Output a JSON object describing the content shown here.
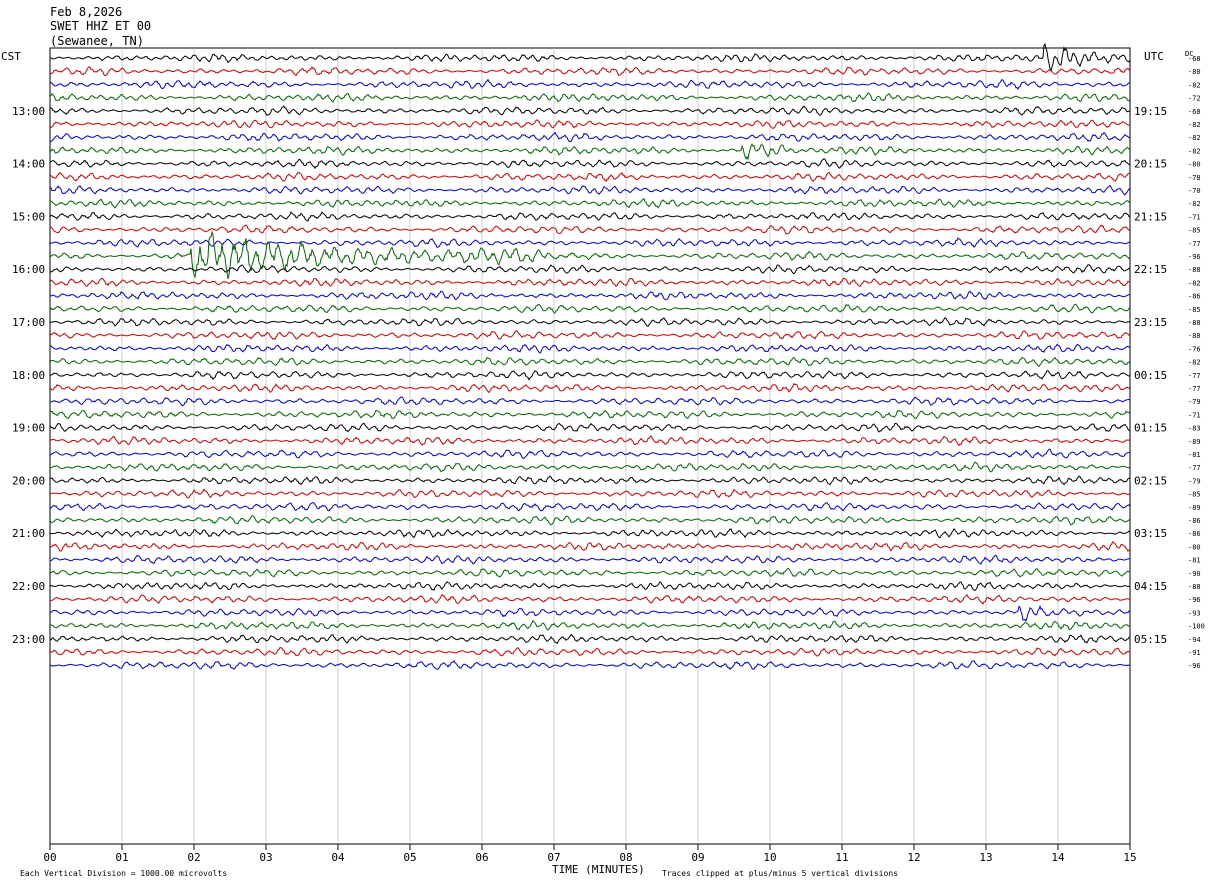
{
  "header": {
    "date": "Feb 8,2026",
    "station": "SWET HHZ ET 00",
    "location": "(Sewanee, TN)"
  },
  "axes": {
    "left_label": "CST",
    "right_label": "UTC",
    "dc_label": "DC",
    "x_label": "TIME (MINUTES)"
  },
  "footer": {
    "scale_note": "Each Vertical Division = 1000.00 microvolts",
    "clip_note": "Traces clipped at plus/minus 5 vertical divisions"
  },
  "colors": {
    "trace_cycle": [
      "#000000",
      "#cc0000",
      "#0000cc",
      "#006600"
    ],
    "grid": "#b0b0b0"
  },
  "chart_data": {
    "type": "line",
    "title": "",
    "xlabel": "TIME (MINUTES)",
    "xlim": [
      0,
      15
    ],
    "x_ticks": [
      "00",
      "01",
      "02",
      "03",
      "04",
      "05",
      "06",
      "07",
      "08",
      "09",
      "10",
      "11",
      "12",
      "13",
      "14",
      "15"
    ],
    "cst_labels": [
      "13:00",
      "14:00",
      "15:00",
      "16:00",
      "17:00",
      "18:00",
      "19:00",
      "20:00",
      "21:00",
      "22:00",
      "23:00"
    ],
    "utc_labels": [
      "19:15",
      "20:15",
      "21:15",
      "22:15",
      "23:15",
      "00:15",
      "01:15",
      "02:15",
      "03:15",
      "04:15",
      "05:15"
    ],
    "dc_offsets": [
      -68,
      -80,
      -82,
      -72,
      -68,
      -82,
      -82,
      -82,
      -80,
      -78,
      -70,
      -82,
      -71,
      -85,
      -77,
      -96,
      -88,
      -82,
      -86,
      -85,
      -88,
      -88,
      -76,
      -82,
      -77,
      -77,
      -79,
      -71,
      -83,
      -89,
      -81,
      -77,
      -79,
      -85,
      -89,
      -86,
      -86,
      -80,
      -81,
      -90,
      -88,
      -96,
      -93,
      -100,
      -94,
      -91,
      -96
    ],
    "traces_per_hour": 4,
    "trace_count": 47,
    "events": [
      {
        "trace": 15,
        "start_min": 1.95,
        "peak_amplitude": "clipped",
        "duration_min": 5.0
      },
      {
        "trace": 0,
        "start_min": 13.8,
        "peak_amplitude": "high",
        "duration_min": 1.2
      },
      {
        "trace": 42,
        "start_min": 13.45,
        "peak_amplitude": "moderate",
        "duration_min": 0.3
      },
      {
        "trace": 7,
        "start_min": 9.6,
        "peak_amplitude": "moderate",
        "duration_min": 0.6
      }
    ]
  }
}
